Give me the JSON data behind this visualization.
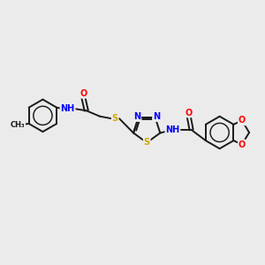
{
  "bg_color": "#ebebeb",
  "bond_color": "#1a1a1a",
  "bond_width": 1.4,
  "atom_colors": {
    "N": "#0000ff",
    "O": "#ff0000",
    "S": "#ccaa00",
    "C": "#1a1a1a",
    "H": "#008080"
  },
  "font_size": 7.0,
  "fig_width": 3.0,
  "fig_height": 3.0,
  "dpi": 100,
  "xlim": [
    0,
    10
  ],
  "ylim": [
    0,
    10
  ]
}
